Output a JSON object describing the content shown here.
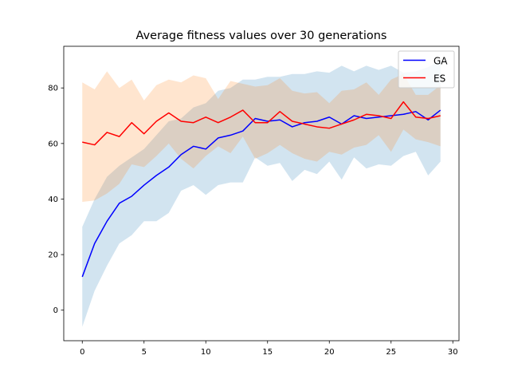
{
  "chart_data": {
    "type": "line",
    "title": "Average fitness values over 30 generations",
    "xlabel": "",
    "ylabel": "",
    "xlim": [
      -1.5,
      30.5
    ],
    "ylim": [
      -11,
      95
    ],
    "xticks": [
      0,
      5,
      10,
      15,
      20,
      25,
      30
    ],
    "yticks": [
      0,
      20,
      40,
      60,
      80
    ],
    "legend_position": "top-right",
    "x": [
      0,
      1,
      2,
      3,
      4,
      5,
      6,
      7,
      8,
      9,
      10,
      11,
      12,
      13,
      14,
      15,
      16,
      17,
      18,
      19,
      20,
      21,
      22,
      23,
      24,
      25,
      26,
      27,
      28,
      29
    ],
    "series": [
      {
        "name": "GA",
        "color": "#0000ff",
        "band_color": "#1f77b4",
        "values": [
          12,
          24,
          32,
          38.5,
          41,
          45,
          48.5,
          51.5,
          56,
          59,
          58,
          62,
          63,
          64.5,
          69,
          68,
          68.5,
          66,
          67.5,
          68,
          69.5,
          67,
          70,
          69,
          69.5,
          70,
          70.5,
          71.5,
          68.5,
          72
        ],
        "lower": [
          -6,
          7,
          16,
          24,
          27,
          32,
          32,
          35,
          43,
          45,
          41.5,
          45,
          46,
          46,
          55,
          52,
          53,
          46.5,
          50.5,
          49,
          53.5,
          47,
          55,
          51,
          52.5,
          52,
          55.5,
          57,
          48.5,
          53.5
        ],
        "upper": [
          30,
          40,
          48,
          52,
          55,
          58,
          63,
          68,
          69,
          73,
          74.5,
          79,
          80,
          83,
          83,
          84,
          84,
          85,
          85,
          86,
          85.5,
          88,
          86,
          88,
          86.5,
          88,
          85.5,
          86,
          87.5,
          90
        ]
      },
      {
        "name": "ES",
        "color": "#ff0000",
        "band_color": "#ff7f0e",
        "values": [
          60.5,
          59.5,
          64,
          62.5,
          67.5,
          63.5,
          68,
          71,
          68,
          67.5,
          69.5,
          67.5,
          69.5,
          72,
          67.5,
          67.5,
          71.5,
          68,
          67,
          66,
          65.5,
          67,
          68.5,
          70.5,
          70,
          69,
          75,
          69.5,
          69,
          70
        ],
        "lower": [
          39,
          39.5,
          42,
          45.5,
          52.5,
          51.5,
          55.5,
          60,
          54.5,
          51,
          55.5,
          59,
          56.5,
          62.5,
          54.5,
          56.5,
          59.5,
          56.5,
          54.5,
          53.5,
          57,
          56,
          58.5,
          59.5,
          63,
          57,
          65,
          61.5,
          60.5,
          59
        ],
        "upper": [
          82,
          79.5,
          86,
          80,
          83,
          75.5,
          81,
          83,
          82,
          84.5,
          83.5,
          76,
          82.5,
          81.5,
          80.5,
          81,
          83.5,
          79,
          78,
          78.5,
          74.5,
          79,
          79.5,
          82,
          77.5,
          83,
          85,
          77.5,
          77.5,
          81
        ]
      }
    ]
  }
}
